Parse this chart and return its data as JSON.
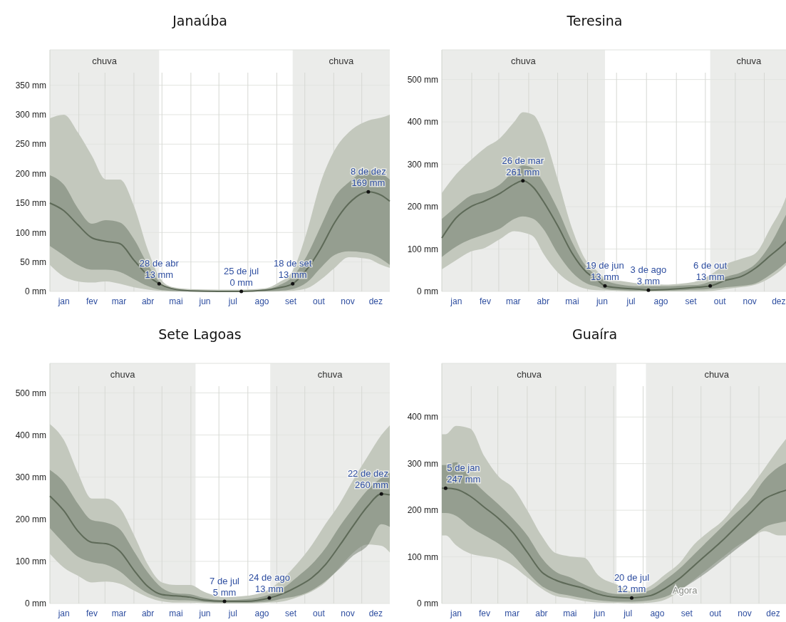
{
  "chart_data": [
    {
      "type": "line",
      "title": "Janaúba",
      "x": [
        "--01-01",
        "--01-16",
        "--01-31",
        "--02-15",
        "--03-02",
        "--03-17",
        "--04-01",
        "--04-16",
        "--04-28",
        "--05-11",
        "--05-31",
        "--06-30",
        "--07-25",
        "--08-19",
        "--09-03",
        "--09-18",
        "--10-03",
        "--10-18",
        "--11-02",
        "--11-17",
        "--12-08",
        "--12-22",
        "--12-31"
      ],
      "xlim": [
        "--01-01",
        "--12-31"
      ],
      "ylim": [
        0,
        410
      ],
      "xticks": [
        {
          "value": "--01-16",
          "label": "jan"
        },
        {
          "value": "--02-15",
          "label": "fev"
        },
        {
          "value": "--03-16",
          "label": "mar"
        },
        {
          "value": "--04-16",
          "label": "abr"
        },
        {
          "value": "--05-16",
          "label": "mai"
        },
        {
          "value": "--06-16",
          "label": "jun"
        },
        {
          "value": "--07-16",
          "label": "jul"
        },
        {
          "value": "--08-16",
          "label": "ago"
        },
        {
          "value": "--09-16",
          "label": "set"
        },
        {
          "value": "--10-16",
          "label": "out"
        },
        {
          "value": "--11-16",
          "label": "nov"
        },
        {
          "value": "--12-16",
          "label": "dez"
        },
        {
          "value": "--02-01",
          "label": null
        },
        {
          "value": "--03-01",
          "label": null
        },
        {
          "value": "--04-01",
          "label": null
        },
        {
          "value": "--05-01",
          "label": null
        },
        {
          "value": "--06-01",
          "label": null
        },
        {
          "value": "--07-01",
          "label": null
        },
        {
          "value": "--08-01",
          "label": null
        },
        {
          "value": "--09-01",
          "label": null
        },
        {
          "value": "--10-01",
          "label": null
        },
        {
          "value": "--11-01",
          "label": null
        },
        {
          "value": "--12-01",
          "label": null
        }
      ],
      "yticks": [
        {
          "value": 0,
          "label": "0 mm"
        },
        {
          "value": 50,
          "label": "50 mm"
        },
        {
          "value": 100,
          "label": "100 mm"
        },
        {
          "value": 150,
          "label": "150 mm"
        },
        {
          "value": 200,
          "label": "200 mm"
        },
        {
          "value": 250,
          "label": "250 mm"
        },
        {
          "value": 300,
          "label": "300 mm"
        },
        {
          "value": 350,
          "label": "350 mm"
        }
      ],
      "grid": true,
      "bands": [
        {
          "axis": "x",
          "from": "--01-01",
          "to": "--04-28",
          "label": "chuva",
          "color": "#ebecea"
        },
        {
          "axis": "x",
          "from": "--09-18",
          "to": "--12-31",
          "label": "chuva",
          "color": "#ebecea"
        }
      ],
      "series": [
        {
          "color": "#5e6a58",
          "values": [
            150,
            137,
            113,
            91,
            85,
            81,
            53,
            27,
            13,
            5,
            1,
            0,
            0,
            2,
            6,
            13,
            37,
            73,
            117,
            149,
            169,
            163,
            153
          ],
          "lower": [
            77,
            61,
            45,
            37,
            37,
            33,
            21,
            9,
            3,
            1,
            0,
            0,
            0,
            0,
            1,
            4,
            15,
            40,
            62,
            68,
            65,
            55,
            45
          ],
          "upper": [
            197,
            181,
            141,
            115,
            121,
            117,
            89,
            45,
            17,
            5,
            2,
            1,
            1,
            3,
            10,
            25,
            60,
            110,
            160,
            185,
            205,
            200,
            190
          ]
        },
        {
          "color": "#c3c8bd",
          "values": [
            null,
            null,
            null,
            null,
            null,
            null,
            null,
            null,
            null,
            null,
            null,
            null,
            null,
            null,
            null,
            null,
            null,
            null,
            null,
            null,
            null,
            null,
            null
          ],
          "lower": [
            45,
            25,
            17,
            15,
            17,
            13,
            7,
            3,
            1,
            0,
            0,
            0,
            0,
            0,
            0,
            1,
            5,
            20,
            40,
            58,
            55,
            45,
            40
          ],
          "upper": [
            294,
            300,
            270,
            230,
            190,
            190,
            145,
            70,
            25,
            8,
            4,
            3,
            3,
            5,
            15,
            35,
            100,
            185,
            240,
            270,
            290,
            295,
            300
          ]
        }
      ],
      "annotations": [
        {
          "text": "28 de abr\n13 mm",
          "x": "--04-28",
          "y": 13
        },
        {
          "text": "25 de jul\n0 mm",
          "x": "--07-25",
          "y": 0
        },
        {
          "text": "18 de set\n13 mm",
          "x": "--09-18",
          "y": 13
        },
        {
          "text": "8 de dez\n169 mm",
          "x": "--12-08",
          "y": 169
        }
      ]
    },
    {
      "type": "line",
      "title": "Teresina",
      "x": [
        "--01-01",
        "--01-16",
        "--01-31",
        "--02-15",
        "--03-02",
        "--03-17",
        "--03-26",
        "--04-06",
        "--04-16",
        "--05-01",
        "--05-16",
        "--05-31",
        "--06-10",
        "--06-19",
        "--07-05",
        "--07-25",
        "--08-03",
        "--08-19",
        "--09-08",
        "--09-23",
        "--10-06",
        "--10-23",
        "--11-07",
        "--11-22",
        "--12-07",
        "--12-22",
        "--12-25"
      ],
      "xlim": [
        "--01-01",
        "--12-25"
      ],
      "ylim": [
        0,
        570
      ],
      "xticks": [
        {
          "value": "--01-16",
          "label": "jan"
        },
        {
          "value": "--02-15",
          "label": "fev"
        },
        {
          "value": "--03-16",
          "label": "mar"
        },
        {
          "value": "--04-16",
          "label": "abr"
        },
        {
          "value": "--05-16",
          "label": "mai"
        },
        {
          "value": "--06-16",
          "label": "jun"
        },
        {
          "value": "--07-16",
          "label": "jul"
        },
        {
          "value": "--08-16",
          "label": "ago"
        },
        {
          "value": "--09-16",
          "label": "set"
        },
        {
          "value": "--10-16",
          "label": "out"
        },
        {
          "value": "--11-16",
          "label": "nov"
        },
        {
          "value": "--12-16",
          "label": "dez"
        },
        {
          "value": "--02-01",
          "label": null
        },
        {
          "value": "--03-01",
          "label": null
        },
        {
          "value": "--04-01",
          "label": null
        },
        {
          "value": "--05-01",
          "label": null
        },
        {
          "value": "--06-01",
          "label": null
        },
        {
          "value": "--07-01",
          "label": null
        },
        {
          "value": "--08-01",
          "label": null
        },
        {
          "value": "--09-01",
          "label": null
        },
        {
          "value": "--10-01",
          "label": null
        },
        {
          "value": "--11-01",
          "label": null
        },
        {
          "value": "--12-01",
          "label": null
        }
      ],
      "yticks": [
        {
          "value": 0,
          "label": "0 mm"
        },
        {
          "value": 100,
          "label": "100 mm"
        },
        {
          "value": 200,
          "label": "200 mm"
        },
        {
          "value": 300,
          "label": "300 mm"
        },
        {
          "value": 400,
          "label": "400 mm"
        },
        {
          "value": 500,
          "label": "500 mm"
        }
      ],
      "grid": true,
      "bands": [
        {
          "axis": "x",
          "from": "--01-01",
          "to": "--06-19",
          "label": "chuva",
          "color": "#ebecea"
        },
        {
          "axis": "x",
          "from": "--10-06",
          "to": "--12-25",
          "label": "chuva",
          "color": "#ebecea"
        }
      ],
      "series": [
        {
          "color": "#5e6a58",
          "values": [
            126,
            174,
            200,
            214,
            231,
            253,
            261,
            245,
            213,
            155,
            90,
            45,
            29,
            13,
            8,
            5,
            3,
            4,
            7,
            10,
            13,
            27,
            35,
            55,
            84,
            113,
            120
          ],
          "lower": [
            81,
            106,
            123,
            135,
            148,
            171,
            177,
            171,
            148,
            90,
            45,
            19,
            12,
            6,
            3,
            2,
            2,
            2,
            3,
            4,
            6,
            10,
            13,
            19,
            39,
            65,
            71
          ],
          "upper": [
            171,
            200,
            226,
            235,
            252,
            284,
            297,
            290,
            258,
            194,
            116,
            58,
            39,
            26,
            16,
            12,
            12,
            12,
            14,
            15,
            23,
            35,
            45,
            65,
            110,
            174,
            187
          ]
        },
        {
          "color": "#c3c8bd",
          "values": [
            null,
            null,
            null,
            null,
            null,
            null,
            null,
            null,
            null,
            null,
            null,
            null,
            null,
            null,
            null,
            null,
            null,
            null,
            null,
            null,
            null,
            null,
            null,
            null,
            null,
            null,
            null
          ],
          "lower": [
            52,
            74,
            94,
            103,
            123,
            142,
            139,
            129,
            90,
            45,
            19,
            6,
            3,
            2,
            1,
            0,
            0,
            0,
            0,
            0,
            1,
            6,
            10,
            16,
            32,
            58,
            65
          ],
          "upper": [
            232,
            277,
            310,
            339,
            361,
            400,
            423,
            416,
            374,
            265,
            148,
            71,
            50,
            32,
            25,
            19,
            18,
            16,
            19,
            25,
            39,
            65,
            77,
            90,
            148,
            213,
            232
          ]
        }
      ],
      "annotations": [
        {
          "text": "26 de mar\n261 mm",
          "x": "--03-26",
          "y": 261
        },
        {
          "text": "19 de jun\n13 mm",
          "x": "--06-19",
          "y": 13
        },
        {
          "text": "3 de ago\n3 mm",
          "x": "--08-03",
          "y": 3
        },
        {
          "text": "6 de out\n13 mm",
          "x": "--10-06",
          "y": 13
        }
      ]
    },
    {
      "type": "line",
      "title": "Sete Lagoas",
      "x": [
        "--01-01",
        "--01-16",
        "--01-31",
        "--02-15",
        "--03-02",
        "--03-17",
        "--04-01",
        "--04-16",
        "--05-01",
        "--05-16",
        "--05-31",
        "--06-15",
        "--07-07",
        "--07-30",
        "--08-24",
        "--09-08",
        "--09-23",
        "--10-08",
        "--10-23",
        "--11-07",
        "--11-22",
        "--12-07",
        "--12-22",
        "--12-31"
      ],
      "xlim": [
        "--01-01",
        "--12-31"
      ],
      "ylim": [
        0,
        570
      ],
      "xticks": [
        {
          "value": "--01-16",
          "label": "jan"
        },
        {
          "value": "--02-15",
          "label": "fev"
        },
        {
          "value": "--03-16",
          "label": "mar"
        },
        {
          "value": "--04-16",
          "label": "abr"
        },
        {
          "value": "--05-16",
          "label": "mai"
        },
        {
          "value": "--06-16",
          "label": "jun"
        },
        {
          "value": "--07-16",
          "label": "jul"
        },
        {
          "value": "--08-16",
          "label": "ago"
        },
        {
          "value": "--09-16",
          "label": "set"
        },
        {
          "value": "--10-16",
          "label": "out"
        },
        {
          "value": "--11-16",
          "label": "nov"
        },
        {
          "value": "--12-16",
          "label": "dez"
        },
        {
          "value": "--02-01",
          "label": null
        },
        {
          "value": "--03-01",
          "label": null
        },
        {
          "value": "--04-01",
          "label": null
        },
        {
          "value": "--05-01",
          "label": null
        },
        {
          "value": "--06-01",
          "label": null
        },
        {
          "value": "--07-01",
          "label": null
        },
        {
          "value": "--08-01",
          "label": null
        },
        {
          "value": "--09-01",
          "label": null
        },
        {
          "value": "--10-01",
          "label": null
        },
        {
          "value": "--11-01",
          "label": null
        },
        {
          "value": "--12-01",
          "label": null
        }
      ],
      "yticks": [
        {
          "value": 0,
          "label": "0 mm"
        },
        {
          "value": 100,
          "label": "100 mm"
        },
        {
          "value": 200,
          "label": "200 mm"
        },
        {
          "value": 300,
          "label": "300 mm"
        },
        {
          "value": 400,
          "label": "400 mm"
        },
        {
          "value": 500,
          "label": "500 mm"
        }
      ],
      "grid": true,
      "bands": [
        {
          "axis": "x",
          "from": "--01-01",
          "to": "--06-06",
          "label": "chuva",
          "color": "#ebecea"
        },
        {
          "axis": "x",
          "from": "--08-25",
          "to": "--12-31",
          "label": "chuva",
          "color": "#ebecea"
        }
      ],
      "series": [
        {
          "color": "#5e6a58",
          "values": [
            255,
            220,
            172,
            145,
            142,
            124,
            79,
            40,
            21,
            18,
            15,
            8,
            5,
            5,
            13,
            24,
            40,
            60,
            92,
            137,
            185,
            230,
            260,
            258
          ],
          "lower": [
            179,
            143,
            111,
            98,
            92,
            76,
            47,
            24,
            12,
            8,
            7,
            4,
            2,
            2,
            5,
            12,
            18,
            31,
            53,
            82,
            114,
            137,
            188,
            182
          ],
          "upper": [
            317,
            288,
            237,
            198,
            192,
            176,
            124,
            73,
            37,
            24,
            22,
            13,
            8,
            10,
            21,
            37,
            63,
            92,
            131,
            182,
            227,
            269,
            298,
            310
          ]
        },
        {
          "color": "#c3c8bd",
          "values": [
            null,
            null,
            null,
            null,
            null,
            null,
            null,
            null,
            null,
            null,
            null,
            null,
            null,
            null,
            null,
            null,
            null,
            null,
            null,
            null,
            null,
            null,
            null,
            null
          ],
          "lower": [
            118,
            85,
            66,
            50,
            52,
            47,
            31,
            15,
            5,
            2,
            2,
            1,
            0,
            0,
            2,
            5,
            15,
            28,
            50,
            85,
            121,
            140,
            137,
            121
          ],
          "upper": [
            426,
            388,
            310,
            249,
            249,
            227,
            163,
            92,
            50,
            44,
            44,
            28,
            15,
            18,
            34,
            60,
            95,
            137,
            188,
            236,
            294,
            348,
            400,
            423
          ]
        }
      ],
      "annotations": [
        {
          "text": "7 de jul\n5 mm",
          "x": "--07-07",
          "y": 5
        },
        {
          "text": "24 de ago\n13 mm",
          "x": "--08-24",
          "y": 13
        },
        {
          "text": "22 de dez\n260 mm",
          "x": "--12-22",
          "y": 260
        }
      ]
    },
    {
      "type": "line",
      "title": "Guaíra",
      "x": [
        "--01-01",
        "--01-05",
        "--01-16",
        "--01-31",
        "--02-15",
        "--03-02",
        "--03-17",
        "--04-01",
        "--04-16",
        "--05-01",
        "--05-16",
        "--05-31",
        "--06-15",
        "--07-05",
        "--07-20",
        "--08-09",
        "--08-24",
        "--09-08",
        "--09-23",
        "--10-08",
        "--10-23",
        "--11-07",
        "--11-22",
        "--12-07",
        "--12-22",
        "--12-31"
      ],
      "xlim": [
        "--01-01",
        "--12-31"
      ],
      "ylim": [
        0,
        515
      ],
      "xticks": [
        {
          "value": "--01-16",
          "label": "jan"
        },
        {
          "value": "--02-15",
          "label": "fev"
        },
        {
          "value": "--03-16",
          "label": "mar"
        },
        {
          "value": "--04-16",
          "label": "abr"
        },
        {
          "value": "--05-16",
          "label": "mai"
        },
        {
          "value": "--06-16",
          "label": "jun"
        },
        {
          "value": "--07-16",
          "label": "jul"
        },
        {
          "value": "--08-16",
          "label": "ago"
        },
        {
          "value": "--09-16",
          "label": "set"
        },
        {
          "value": "--10-16",
          "label": "out"
        },
        {
          "value": "--11-16",
          "label": "nov"
        },
        {
          "value": "--12-16",
          "label": "dez"
        },
        {
          "value": "--02-01",
          "label": null
        },
        {
          "value": "--03-01",
          "label": null
        },
        {
          "value": "--04-01",
          "label": null
        },
        {
          "value": "--05-01",
          "label": null
        },
        {
          "value": "--06-01",
          "label": null
        },
        {
          "value": "--07-01",
          "label": null
        },
        {
          "value": "--08-01",
          "label": null
        },
        {
          "value": "--09-01",
          "label": null
        },
        {
          "value": "--10-01",
          "label": null
        },
        {
          "value": "--11-01",
          "label": null
        },
        {
          "value": "--12-01",
          "label": null
        }
      ],
      "yticks": [
        {
          "value": 0,
          "label": "0 mm"
        },
        {
          "value": 100,
          "label": "100 mm"
        },
        {
          "value": 200,
          "label": "200 mm"
        },
        {
          "value": 300,
          "label": "300 mm"
        },
        {
          "value": 400,
          "label": "400 mm"
        }
      ],
      "grid": true,
      "bands": [
        {
          "axis": "x",
          "from": "--01-01",
          "to": "--07-04",
          "label": "chuva",
          "color": "#ebecea"
        },
        {
          "axis": "x",
          "from": "--08-04",
          "to": "--12-31",
          "label": "chuva",
          "color": "#ebecea"
        }
      ],
      "series": [
        {
          "color": "#5e6a58",
          "values": [
            247,
            247,
            245,
            230,
            206,
            182,
            152,
            110,
            68,
            50,
            40,
            32,
            20,
            13,
            12,
            17,
            32,
            53,
            80,
            107,
            134,
            164,
            194,
            224,
            238,
            244
          ],
          "lower": [
            194,
            194,
            188,
            164,
            146,
            128,
            104,
            68,
            38,
            23,
            17,
            11,
            7,
            4,
            4,
            7,
            14,
            29,
            47,
            68,
            92,
            116,
            140,
            164,
            173,
            176
          ],
          "upper": [
            297,
            297,
            303,
            270,
            239,
            212,
            182,
            146,
            98,
            68,
            56,
            41,
            29,
            20,
            20,
            29,
            50,
            74,
            104,
            134,
            164,
            194,
            224,
            266,
            293,
            303
          ]
        },
        {
          "color": "#c3c8bd",
          "values": [
            null,
            null,
            null,
            null,
            null,
            null,
            null,
            null,
            null,
            null,
            null,
            null,
            null,
            null,
            null,
            null,
            null,
            null,
            null,
            null,
            null,
            null,
            null,
            null,
            null,
            null
          ],
          "lower": [
            146,
            146,
            125,
            107,
            101,
            95,
            80,
            56,
            32,
            16,
            11,
            5,
            2,
            1,
            0,
            2,
            8,
            26,
            50,
            74,
            98,
            122,
            140,
            155,
            146,
            146
          ],
          "upper": [
            363,
            363,
            381,
            375,
            315,
            272,
            248,
            200,
            146,
            108,
            101,
            98,
            60,
            40,
            26,
            38,
            62,
            86,
            125,
            152,
            176,
            212,
            248,
            290,
            333,
            357
          ]
        }
      ],
      "annotations": [
        {
          "text": "5 de jan\n247 mm",
          "x": "--01-05",
          "y": 247
        },
        {
          "text": "20 de jul\n12 mm",
          "x": "--07-20",
          "y": 12
        },
        {
          "text": "Agora",
          "x": "--09-14",
          "y": 26
        }
      ]
    }
  ]
}
